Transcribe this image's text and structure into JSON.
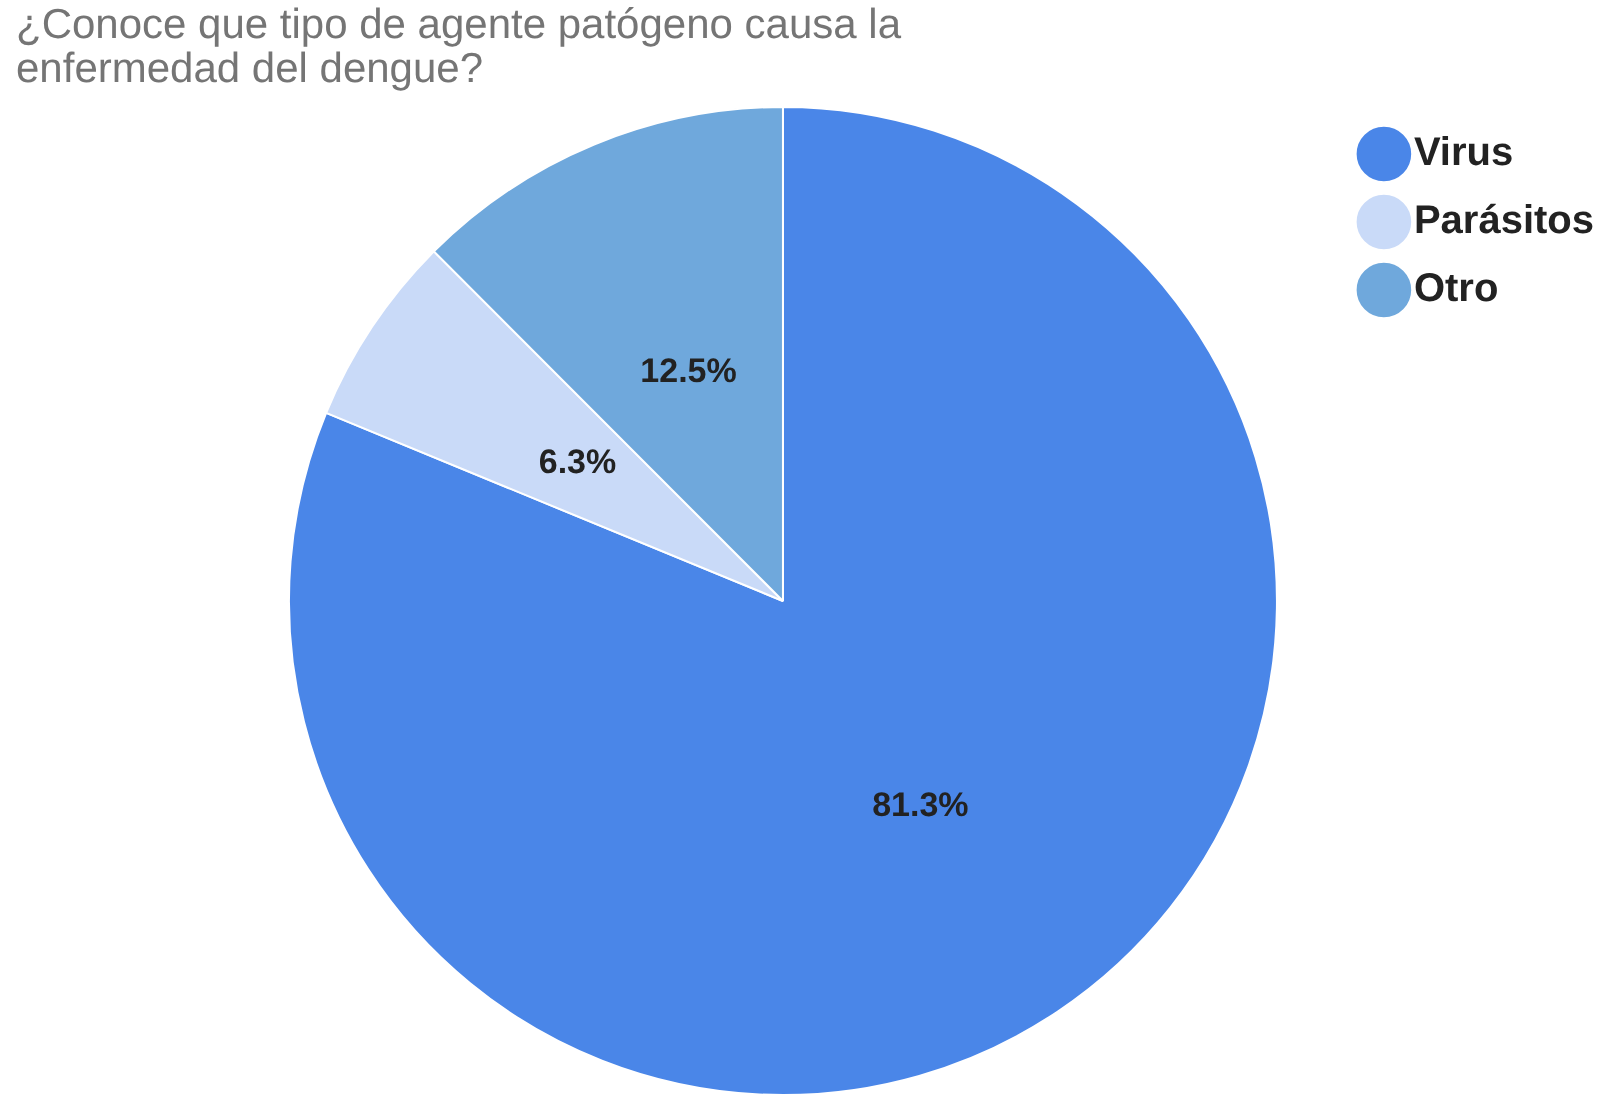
{
  "chart_data": {
    "type": "pie",
    "title": "¿Conoce que tipo de agente patógeno causa la enfermedad del dengue?",
    "categories": [
      "Virus",
      "Parásitos",
      "Otro"
    ],
    "values": [
      81.3,
      6.3,
      12.5
    ],
    "value_labels": [
      "81.3%",
      "6.3%",
      "12.5%"
    ],
    "colors": [
      "#4a86e8",
      "#c9daf8",
      "#6fa8dc"
    ],
    "legend": "top right"
  }
}
